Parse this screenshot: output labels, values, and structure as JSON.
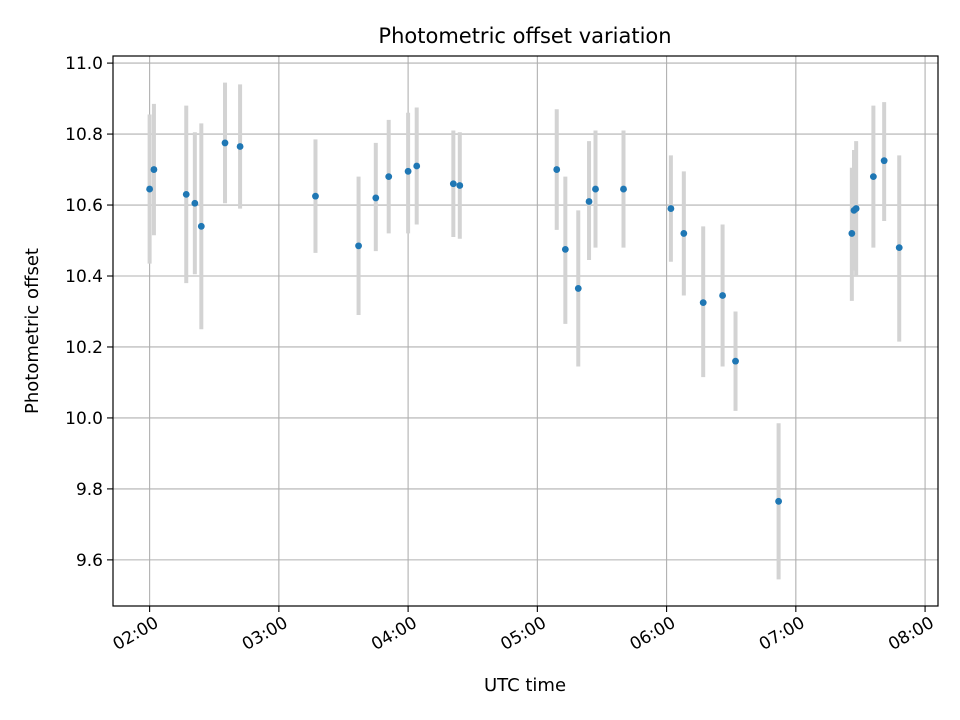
{
  "chart_data": {
    "type": "scatter",
    "title": "Photometric offset variation",
    "xlabel": "UTC time",
    "ylabel": "Photometric offset",
    "x_tick_labels": [
      "02:00",
      "03:00",
      "04:00",
      "05:00",
      "06:00",
      "07:00",
      "08:00"
    ],
    "x_ticks": [
      "02:00",
      "03:00",
      "04:00",
      "05:00",
      "06:00",
      "07:00",
      "08:00"
    ],
    "y_tick_labels": [
      "9.6",
      "9.8",
      "10.0",
      "10.2",
      "10.4",
      "10.6",
      "10.8",
      "11.0"
    ],
    "y_ticks": [
      9.6,
      9.8,
      10.0,
      10.2,
      10.4,
      10.6,
      10.8,
      11.0
    ],
    "xlim": [
      "01:43",
      "08:06"
    ],
    "ylim": [
      9.47,
      11.02
    ],
    "grid": true,
    "colors": {
      "point": "#1f77b4",
      "errorbar": "#d3d3d3",
      "grid": "#b0b0b0"
    },
    "points": [
      {
        "x": "02:00",
        "y": 10.645,
        "low": 10.435,
        "high": 10.855
      },
      {
        "x": "02:02",
        "y": 10.7,
        "low": 10.515,
        "high": 10.885
      },
      {
        "x": "02:17",
        "y": 10.63,
        "low": 10.38,
        "high": 10.88
      },
      {
        "x": "02:21",
        "y": 10.605,
        "low": 10.405,
        "high": 10.805
      },
      {
        "x": "02:24",
        "y": 10.54,
        "low": 10.25,
        "high": 10.83
      },
      {
        "x": "02:35",
        "y": 10.775,
        "low": 10.605,
        "high": 10.945
      },
      {
        "x": "02:42",
        "y": 10.765,
        "low": 10.59,
        "high": 10.94
      },
      {
        "x": "03:17",
        "y": 10.625,
        "low": 10.465,
        "high": 10.785
      },
      {
        "x": "03:37",
        "y": 10.485,
        "low": 10.29,
        "high": 10.68
      },
      {
        "x": "03:45",
        "y": 10.62,
        "low": 10.47,
        "high": 10.775
      },
      {
        "x": "03:51",
        "y": 10.68,
        "low": 10.52,
        "high": 10.84
      },
      {
        "x": "04:00",
        "y": 10.695,
        "low": 10.52,
        "high": 10.86
      },
      {
        "x": "04:04",
        "y": 10.71,
        "low": 10.545,
        "high": 10.875
      },
      {
        "x": "04:21",
        "y": 10.66,
        "low": 10.51,
        "high": 10.81
      },
      {
        "x": "04:24",
        "y": 10.655,
        "low": 10.505,
        "high": 10.805
      },
      {
        "x": "05:09",
        "y": 10.7,
        "low": 10.53,
        "high": 10.87
      },
      {
        "x": "05:13",
        "y": 10.475,
        "low": 10.265,
        "high": 10.68
      },
      {
        "x": "05:19",
        "y": 10.365,
        "low": 10.145,
        "high": 10.585
      },
      {
        "x": "05:24",
        "y": 10.61,
        "low": 10.445,
        "high": 10.78
      },
      {
        "x": "05:27",
        "y": 10.645,
        "low": 10.48,
        "high": 10.81
      },
      {
        "x": "05:40",
        "y": 10.645,
        "low": 10.48,
        "high": 10.81
      },
      {
        "x": "06:02",
        "y": 10.59,
        "low": 10.44,
        "high": 10.74
      },
      {
        "x": "06:08",
        "y": 10.52,
        "low": 10.345,
        "high": 10.695
      },
      {
        "x": "06:17",
        "y": 10.325,
        "low": 10.115,
        "high": 10.54
      },
      {
        "x": "06:26",
        "y": 10.345,
        "low": 10.145,
        "high": 10.545
      },
      {
        "x": "06:32",
        "y": 10.16,
        "low": 10.02,
        "high": 10.3
      },
      {
        "x": "06:52",
        "y": 9.765,
        "low": 9.545,
        "high": 9.985
      },
      {
        "x": "07:26",
        "y": 10.52,
        "low": 10.33,
        "high": 10.705
      },
      {
        "x": "07:27",
        "y": 10.585,
        "low": 10.415,
        "high": 10.755
      },
      {
        "x": "07:28",
        "y": 10.59,
        "low": 10.4,
        "high": 10.78
      },
      {
        "x": "07:36",
        "y": 10.68,
        "low": 10.48,
        "high": 10.88
      },
      {
        "x": "07:41",
        "y": 10.725,
        "low": 10.555,
        "high": 10.89
      },
      {
        "x": "07:48",
        "y": 10.48,
        "low": 10.215,
        "high": 10.74
      }
    ]
  }
}
